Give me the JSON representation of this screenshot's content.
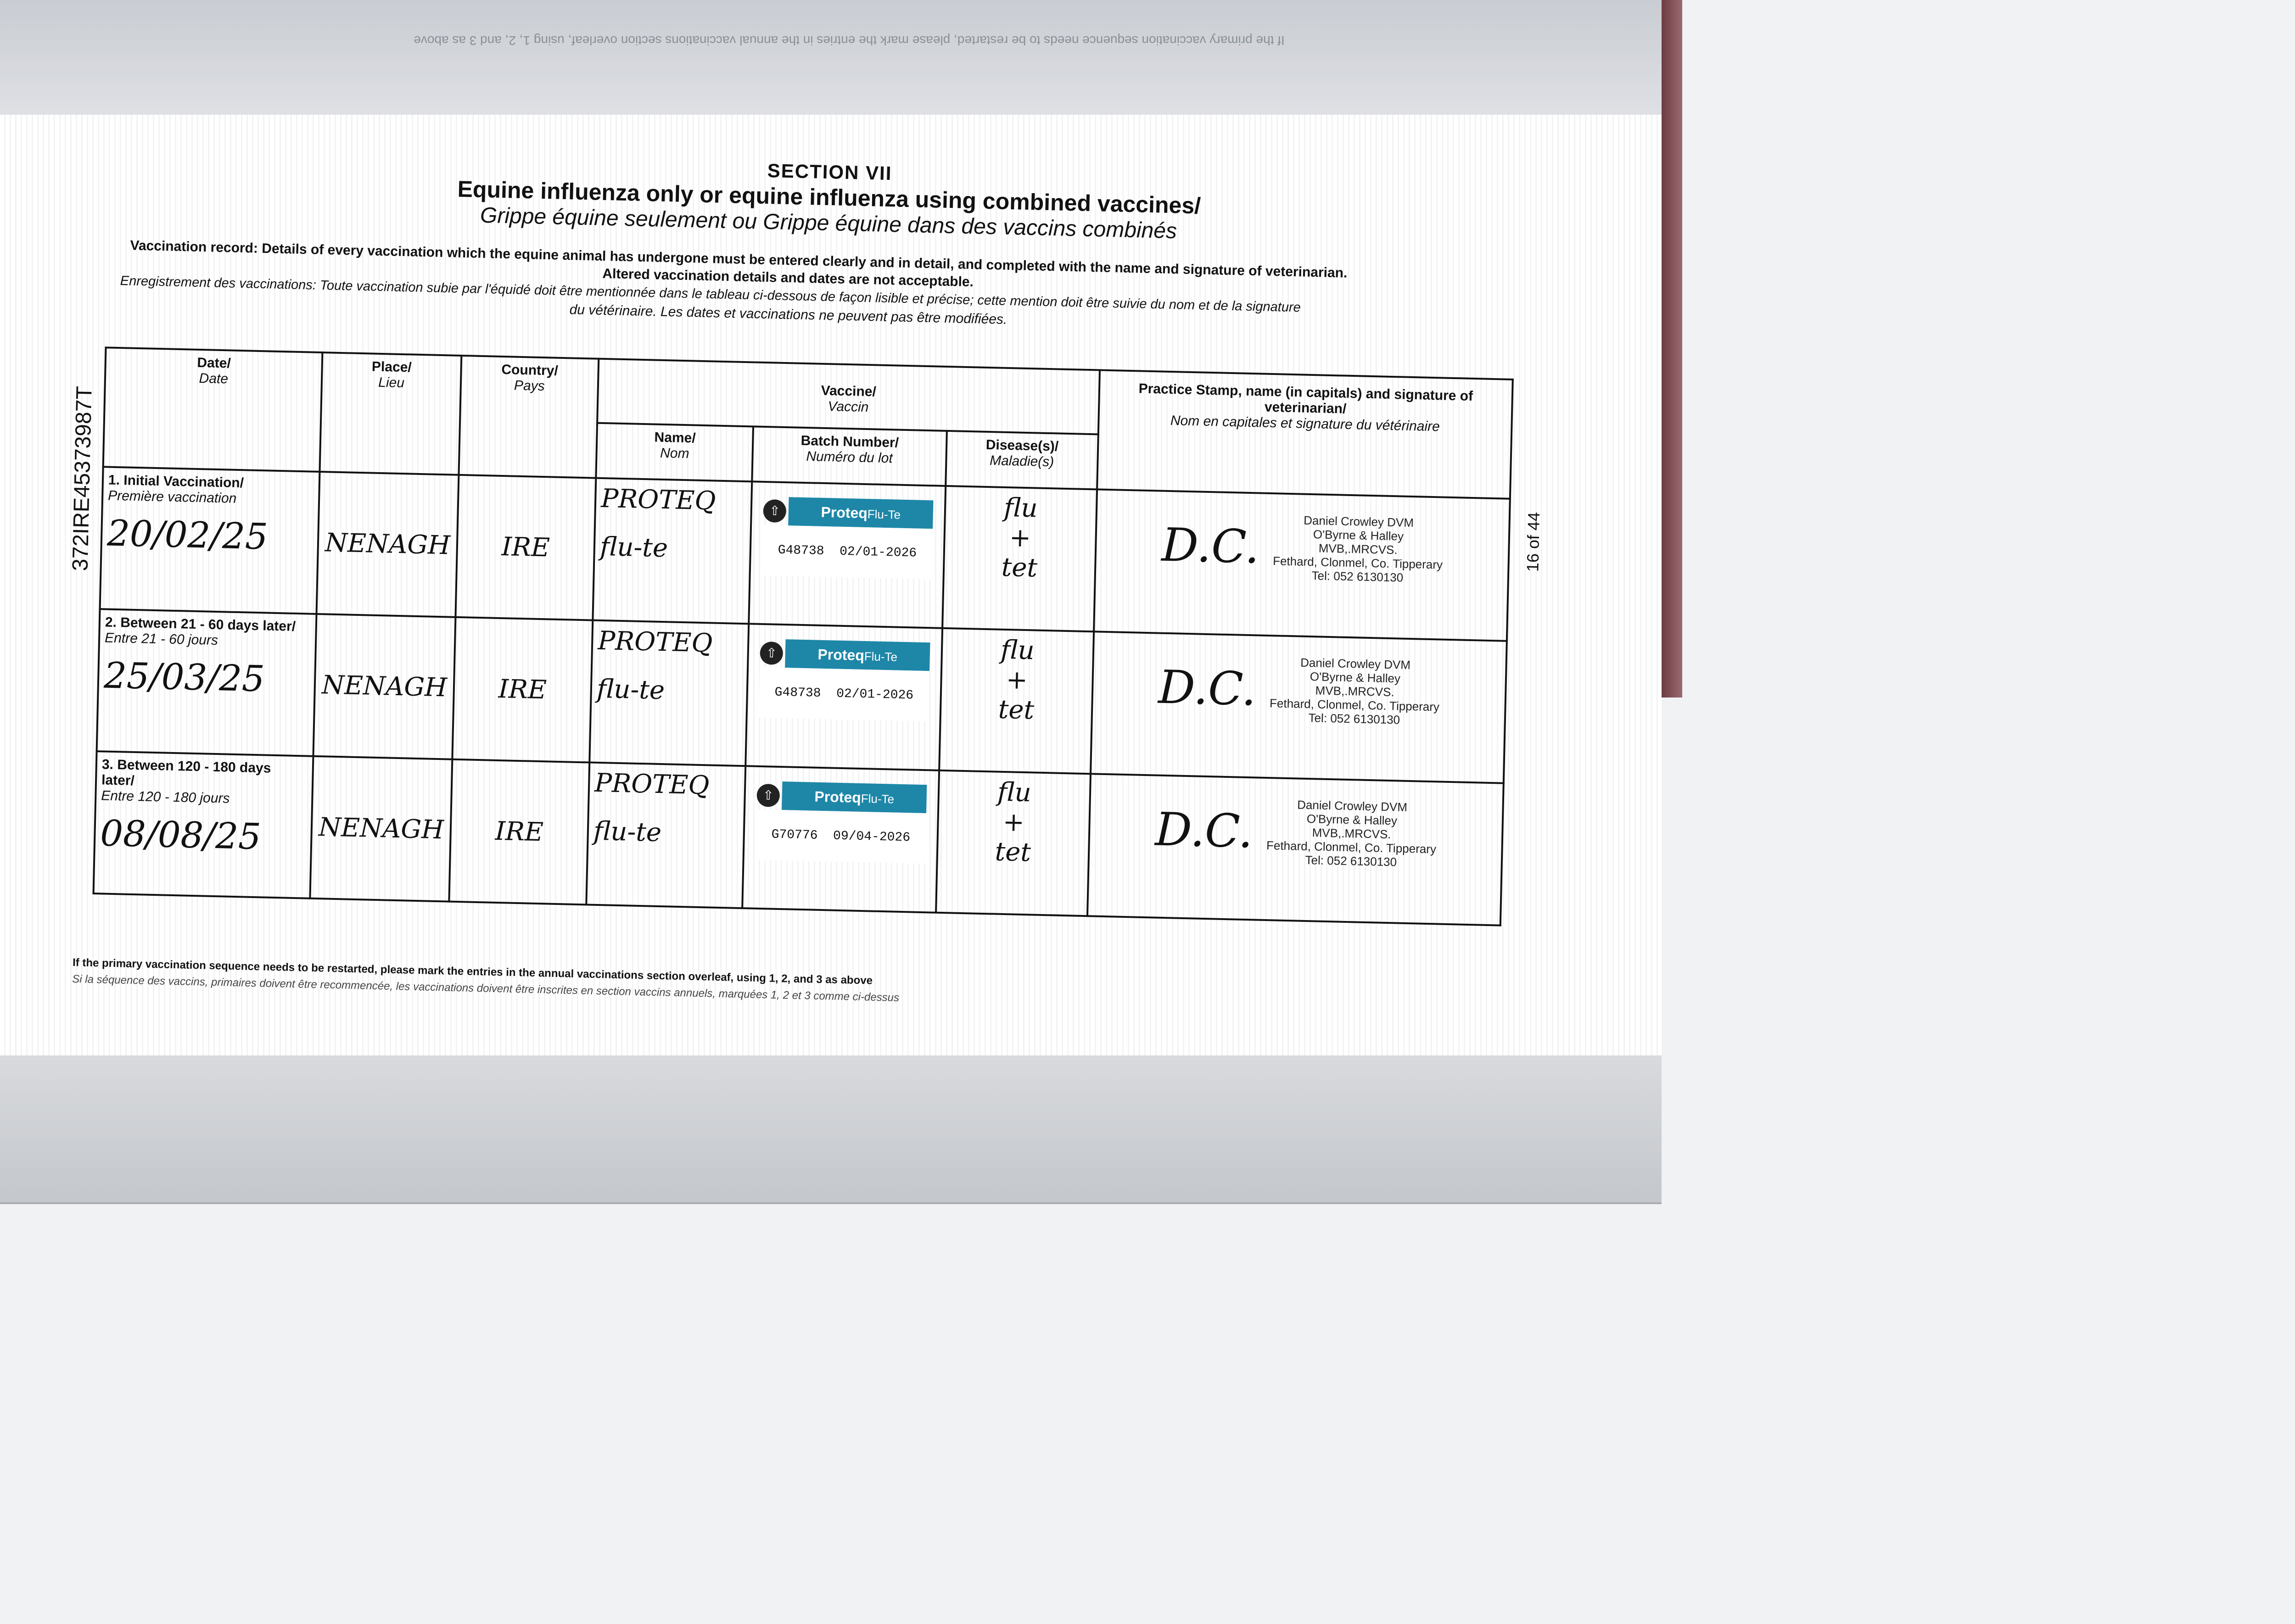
{
  "document": {
    "section": "SECTION VII",
    "title_en": "Equine influenza only or equine influenza using combined vaccines/",
    "title_fr": "Grippe équine seulement ou Grippe équine dans des vaccins combinés",
    "intro_en_1": "Vaccination record: Details of every vaccination which the equine animal has undergone must be entered clearly and in detail, and completed with the name and signature of veterinarian.",
    "intro_en_2": "Altered vaccination details and dates are not acceptable.",
    "intro_fr_1": "Enregistrement des vaccinations: Toute vaccination subie par l'équidé doit être mentionnée dans le tableau ci-dessous de façon lisible et précise; cette mention doit être suivie du nom et de la signature",
    "intro_fr_2": "du vétérinaire. Les dates et vaccinations ne peuvent pas être modifiées.",
    "side_id": "372IRE4537398​7T",
    "page_number": "16 of 44",
    "footer_en": "If the primary vaccination sequence needs to be restarted, please mark the entries in the annual vaccinations section overleaf, using 1, 2, and 3 as above",
    "footer_fr": "Si la séquence des vaccins, primaires doivent être recommencée, les vaccinations doivent être inscrites en section vaccins annuels, marquées 1, 2 et 3 comme ci-dessus"
  },
  "table": {
    "headers": {
      "date": {
        "en": "Date/",
        "fr": "Date"
      },
      "place": {
        "en": "Place/",
        "fr": "Lieu"
      },
      "country": {
        "en": "Country/",
        "fr": "Pays"
      },
      "vaccine": {
        "en": "Vaccine/",
        "fr": "Vaccin"
      },
      "name": {
        "en": "Name/",
        "fr": "Nom"
      },
      "batch": {
        "en": "Batch Number/",
        "fr": "Numéro du lot"
      },
      "disease": {
        "en": "Disease(s)/",
        "fr": "Maladie(s)"
      },
      "stamp": {
        "en": "Practice Stamp, name (in capitals) and signature of veterinarian/",
        "fr": "Nom en capitales et signature du vétérinaire"
      }
    },
    "rows": [
      {
        "label_en": "1. Initial Vaccination/",
        "label_fr": "Première vaccination",
        "date": "20/02/25",
        "place": "NENAGH",
        "country": "IRE",
        "name_1": "PROTEQ",
        "name_2": "flu-te",
        "label_brand": "Proteq",
        "label_product": "Flu-Te",
        "batch": "G48738",
        "expiry": "02/01-2026",
        "disease_1": "flu",
        "disease_2": "+",
        "disease_3": "tet"
      },
      {
        "label_en": "2. Between 21 - 60 days later/",
        "label_fr": "Entre 21 - 60 jours",
        "date": "25/03/25",
        "place": "NENAGH",
        "country": "IRE",
        "name_1": "PROTEQ",
        "name_2": "flu-te",
        "label_brand": "Proteq",
        "label_product": "Flu-Te",
        "batch": "G48738",
        "expiry": "02/01-2026",
        "disease_1": "flu",
        "disease_2": "+",
        "disease_3": "tet"
      },
      {
        "label_en": "3. Between 120 - 180 days later/",
        "label_fr": "Entre 120 - 180 jours",
        "date": "08/08/25",
        "place": "NENAGH",
        "country": "IRE",
        "name_1": "PROTEQ",
        "name_2": "flu-te",
        "label_brand": "Proteq",
        "label_product": "Flu-Te",
        "batch": "G70776",
        "expiry": "09/04-2026",
        "disease_1": "flu",
        "disease_2": "+",
        "disease_3": "tet"
      }
    ],
    "stamp": {
      "line1": "Daniel Crowley DVM",
      "line2": "O'Byrne & Halley",
      "line3": "MVB,.MRCVS.",
      "line4": "Fethard, Clonmel, Co. Tipperary",
      "line5": "Tel: 052 6130130",
      "signature": "D.C."
    }
  },
  "colors": {
    "label_teal": "#1e87a8",
    "spine": "#6d3b42"
  }
}
